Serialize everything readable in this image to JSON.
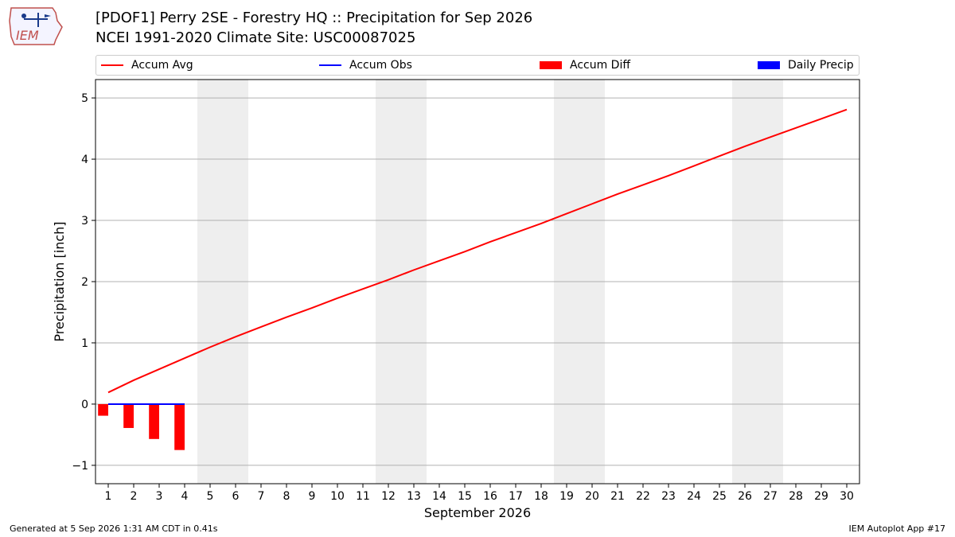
{
  "header": {
    "title_line1": "[PDOF1] Perry 2SE - Forestry HQ :: Precipitation for Sep 2026",
    "title_line2": "NCEI 1991-2020 Climate Site: USC00087025",
    "logo_text": "IEM"
  },
  "legend": {
    "items": [
      {
        "label": "Accum Avg",
        "kind": "line",
        "color": "#ff0000"
      },
      {
        "label": "Accum Obs",
        "kind": "line",
        "color": "#0000ff"
      },
      {
        "label": "Accum Diff",
        "kind": "rect",
        "color": "#ff0000"
      },
      {
        "label": "Daily Precip",
        "kind": "rect",
        "color": "#0000ff"
      }
    ]
  },
  "chart_data": {
    "type": "line",
    "xlabel": "September 2026",
    "ylabel": "Precipitation [inch]",
    "xlim": [
      0.5,
      30.5
    ],
    "ylim": [
      -1.3,
      5.3
    ],
    "yticks": [
      -1,
      0,
      1,
      2,
      3,
      4,
      5
    ],
    "xticks": [
      1,
      2,
      3,
      4,
      5,
      6,
      7,
      8,
      9,
      10,
      11,
      12,
      13,
      14,
      15,
      16,
      17,
      18,
      19,
      20,
      21,
      22,
      23,
      24,
      25,
      26,
      27,
      28,
      29,
      30
    ],
    "grid": "horizontal",
    "legend_position": "top",
    "weekend_shading": [
      [
        4.5,
        6.5
      ],
      [
        11.5,
        13.5
      ],
      [
        18.5,
        20.5
      ],
      [
        25.5,
        27.5
      ]
    ],
    "shading_color": "#eeeeee",
    "series": [
      {
        "name": "Accum Avg",
        "kind": "line",
        "color": "#ff0000",
        "x": [
          1,
          2,
          3,
          4,
          5,
          6,
          7,
          8,
          9,
          10,
          11,
          12,
          13,
          14,
          15,
          16,
          17,
          18,
          19,
          20,
          21,
          22,
          23,
          24,
          25,
          26,
          27,
          28,
          29,
          30
        ],
        "values": [
          0.19,
          0.39,
          0.57,
          0.75,
          0.93,
          1.1,
          1.26,
          1.42,
          1.57,
          1.73,
          1.88,
          2.03,
          2.19,
          2.34,
          2.49,
          2.65,
          2.8,
          2.95,
          3.11,
          3.27,
          3.43,
          3.58,
          3.73,
          3.89,
          4.05,
          4.21,
          4.36,
          4.51,
          4.66,
          4.81
        ]
      },
      {
        "name": "Accum Obs",
        "kind": "line",
        "color": "#0000ff",
        "x": [
          1,
          2,
          3,
          4
        ],
        "values": [
          0.0,
          0.0,
          0.0,
          0.0
        ]
      },
      {
        "name": "Accum Diff",
        "kind": "bar",
        "color": "#ff0000",
        "x": [
          1,
          2,
          3,
          4
        ],
        "values": [
          -0.19,
          -0.39,
          -0.57,
          -0.75
        ]
      },
      {
        "name": "Daily Precip",
        "kind": "bar",
        "color": "#0000ff",
        "x": [
          1,
          2,
          3,
          4
        ],
        "values": [
          0.0,
          0.0,
          0.0,
          0.0
        ]
      }
    ]
  },
  "footer": {
    "left": "Generated at 5 Sep 2026 1:31 AM CDT in 0.41s",
    "right": "IEM Autoplot App #17"
  }
}
